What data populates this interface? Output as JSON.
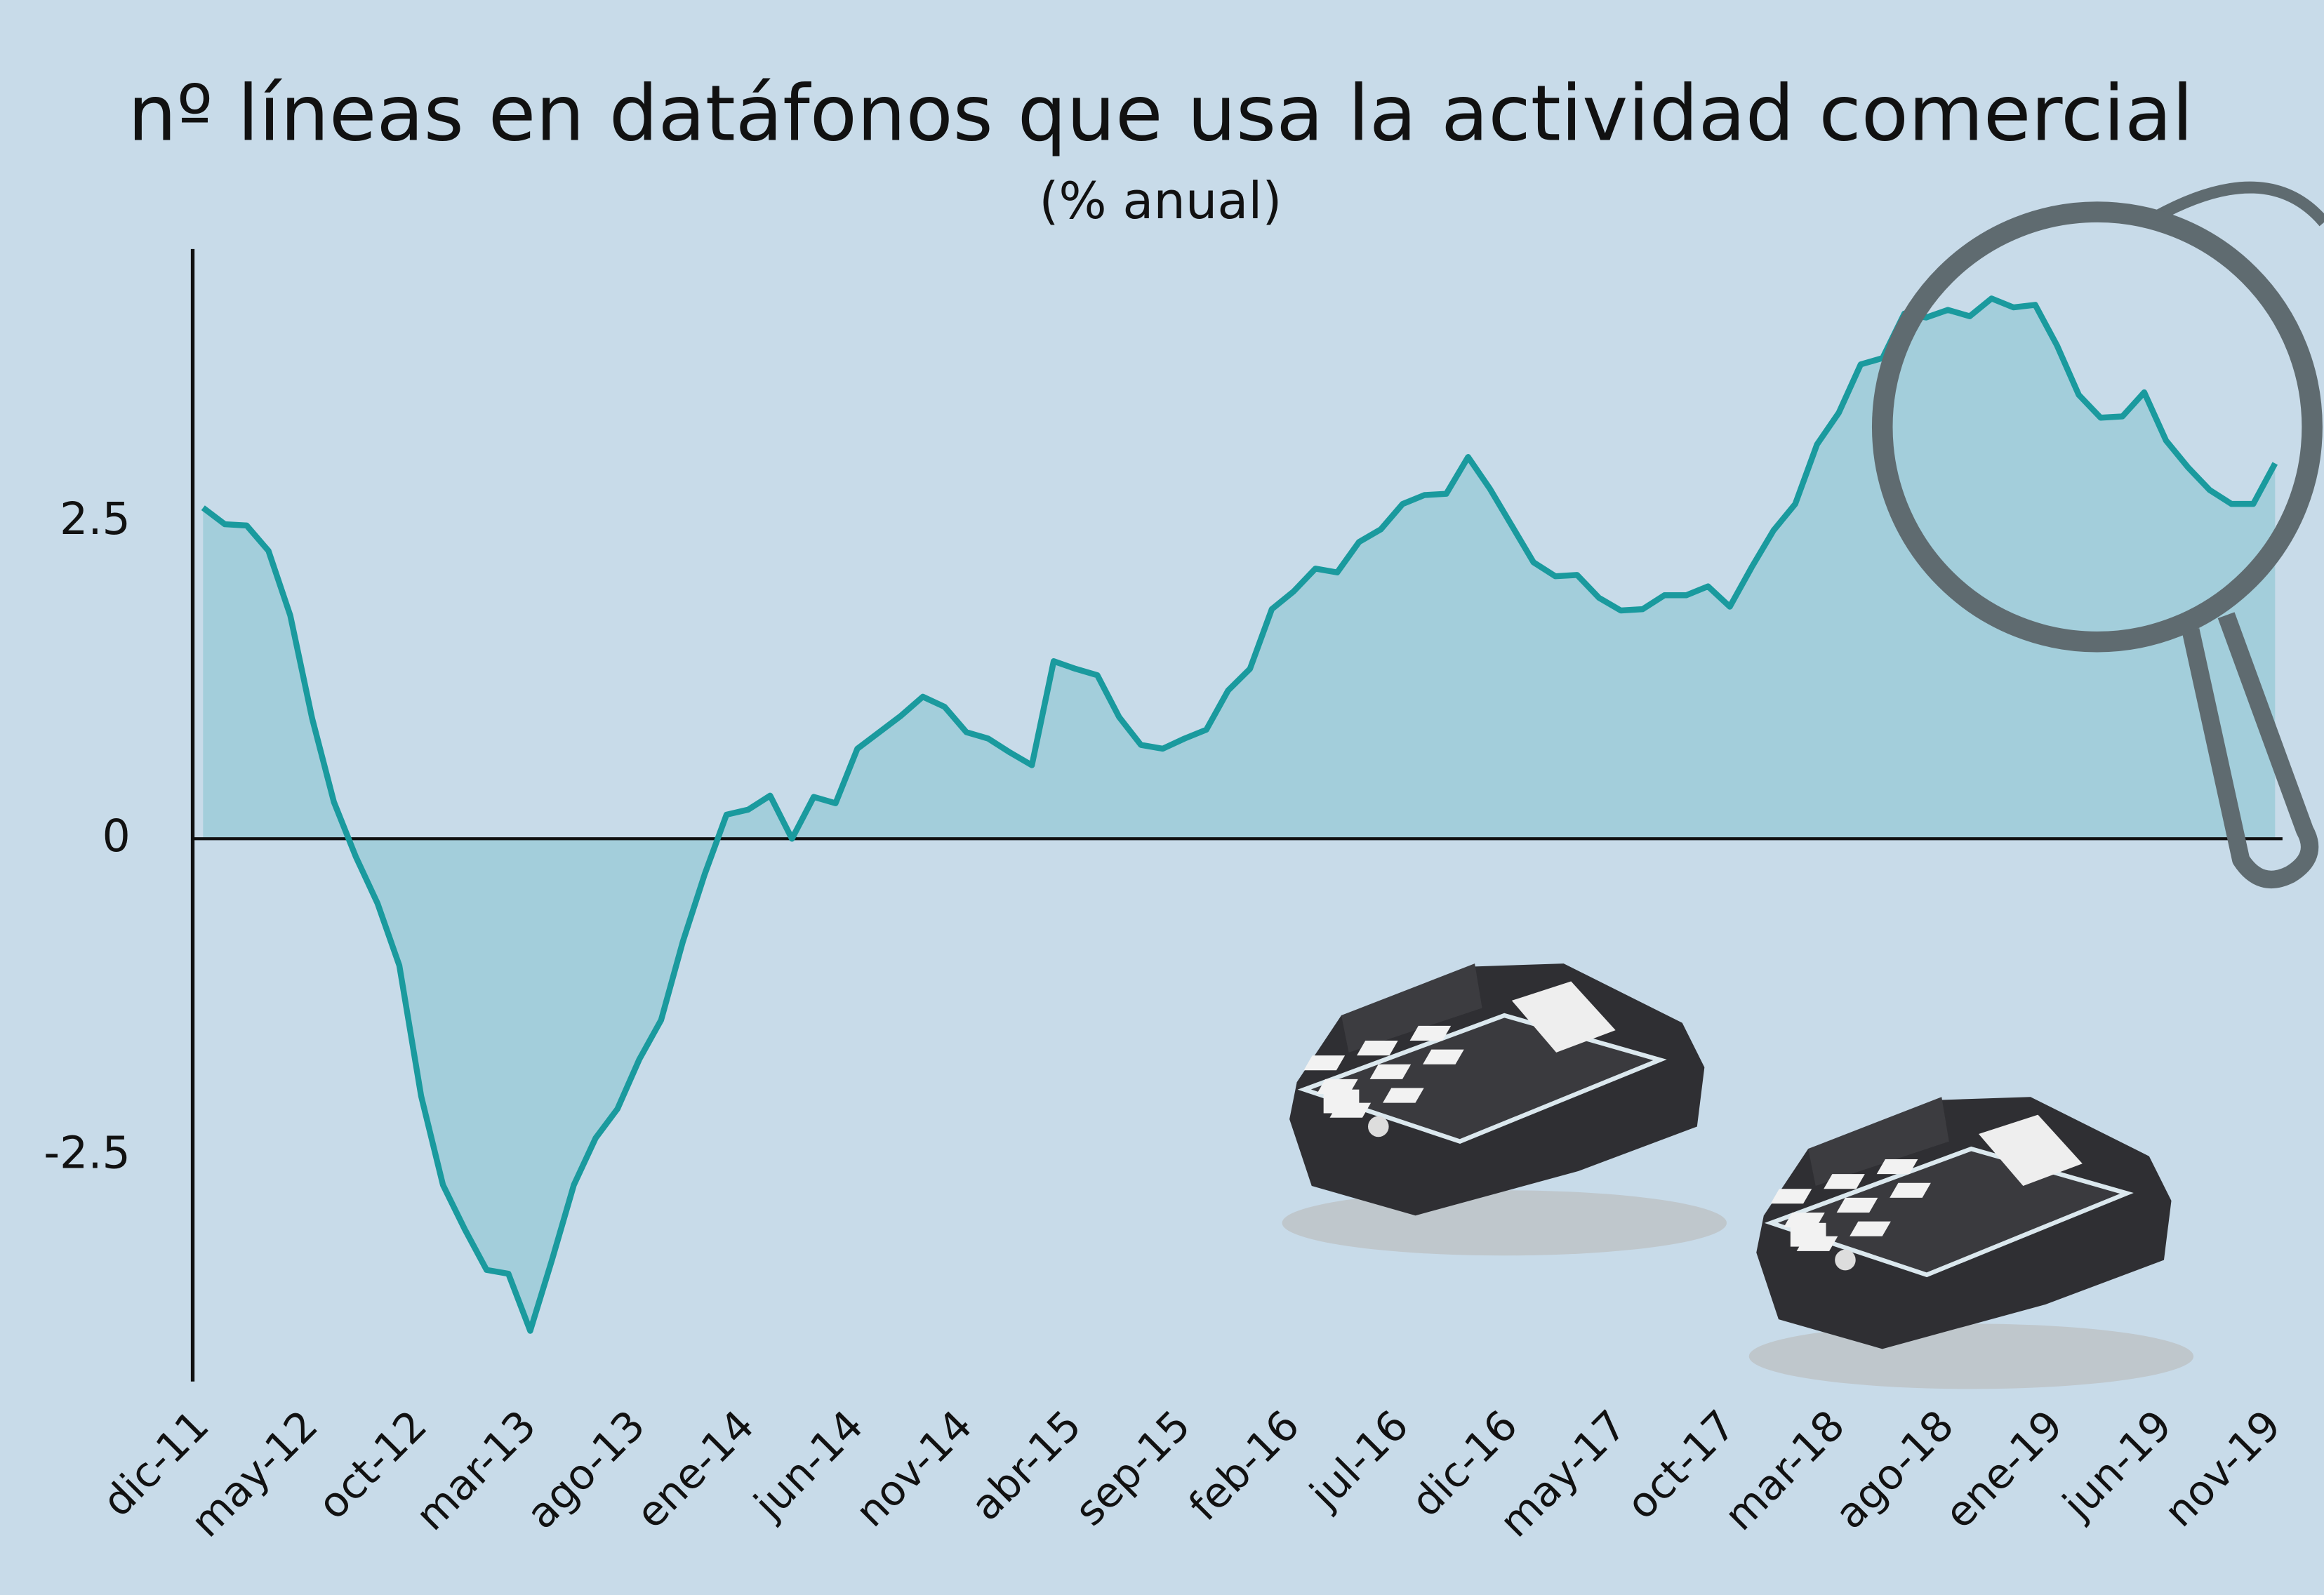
{
  "chart_data": {
    "type": "area",
    "title": "nº líneas en datáfonos que usa la actividad comercial",
    "subtitle": "(% anual)",
    "categories": [
      "dic-11",
      null,
      null,
      null,
      null,
      "may-12",
      null,
      null,
      null,
      null,
      "oct-12",
      null,
      null,
      null,
      null,
      "mar-13",
      null,
      null,
      null,
      null,
      "ago-13",
      null,
      null,
      null,
      null,
      "ene-14",
      null,
      null,
      null,
      null,
      "jun-14",
      null,
      null,
      null,
      null,
      "nov-14",
      null,
      null,
      null,
      null,
      "abr-15",
      null,
      null,
      null,
      null,
      "sep-15",
      null,
      null,
      null,
      null,
      "feb-16",
      null,
      null,
      null,
      null,
      "jul-16",
      null,
      null,
      null,
      null,
      "dic-16",
      null,
      null,
      null,
      null,
      "may-17",
      null,
      null,
      null,
      null,
      "oct-17",
      null,
      null,
      null,
      null,
      "mar-18",
      null,
      null,
      null,
      null,
      "ago-18",
      null,
      null,
      null,
      null,
      "ene-19",
      null,
      null,
      null,
      null,
      "jun-19",
      null,
      null,
      null,
      null,
      "nov-19"
    ],
    "values": [
      2.61,
      2.48,
      2.47,
      2.27,
      1.76,
      0.95,
      0.29,
      -0.14,
      -0.51,
      -1.0,
      -2.03,
      -2.73,
      -3.08,
      -3.4,
      -3.43,
      -3.88,
      -3.32,
      -2.73,
      -2.36,
      -2.13,
      -1.74,
      -1.43,
      -0.81,
      -0.28,
      0.19,
      0.23,
      0.34,
      0.0,
      0.33,
      0.28,
      0.71,
      0.84,
      0.97,
      1.12,
      1.04,
      0.84,
      0.79,
      0.68,
      0.58,
      1.4,
      1.34,
      1.29,
      0.96,
      0.74,
      0.71,
      0.79,
      0.86,
      1.17,
      1.34,
      1.81,
      1.95,
      2.13,
      2.1,
      2.34,
      2.44,
      2.64,
      2.71,
      2.72,
      3.01,
      2.76,
      2.47,
      2.18,
      2.07,
      2.08,
      1.9,
      1.8,
      1.81,
      1.92,
      1.92,
      1.99,
      1.83,
      2.14,
      2.43,
      2.64,
      3.11,
      3.36,
      3.74,
      3.79,
      4.14,
      4.11,
      4.17,
      4.12,
      4.26,
      4.19,
      4.21,
      3.89,
      3.5,
      3.32,
      3.33,
      3.52,
      3.14,
      2.93,
      2.75,
      2.64,
      2.64,
      2.96
    ],
    "color": "#1a9a9e",
    "fill_color": "#a3cedb",
    "ylim": [
      -4.28,
      4.65
    ],
    "yticks": [
      -2.5,
      0,
      2.5
    ],
    "grid": false
  }
}
